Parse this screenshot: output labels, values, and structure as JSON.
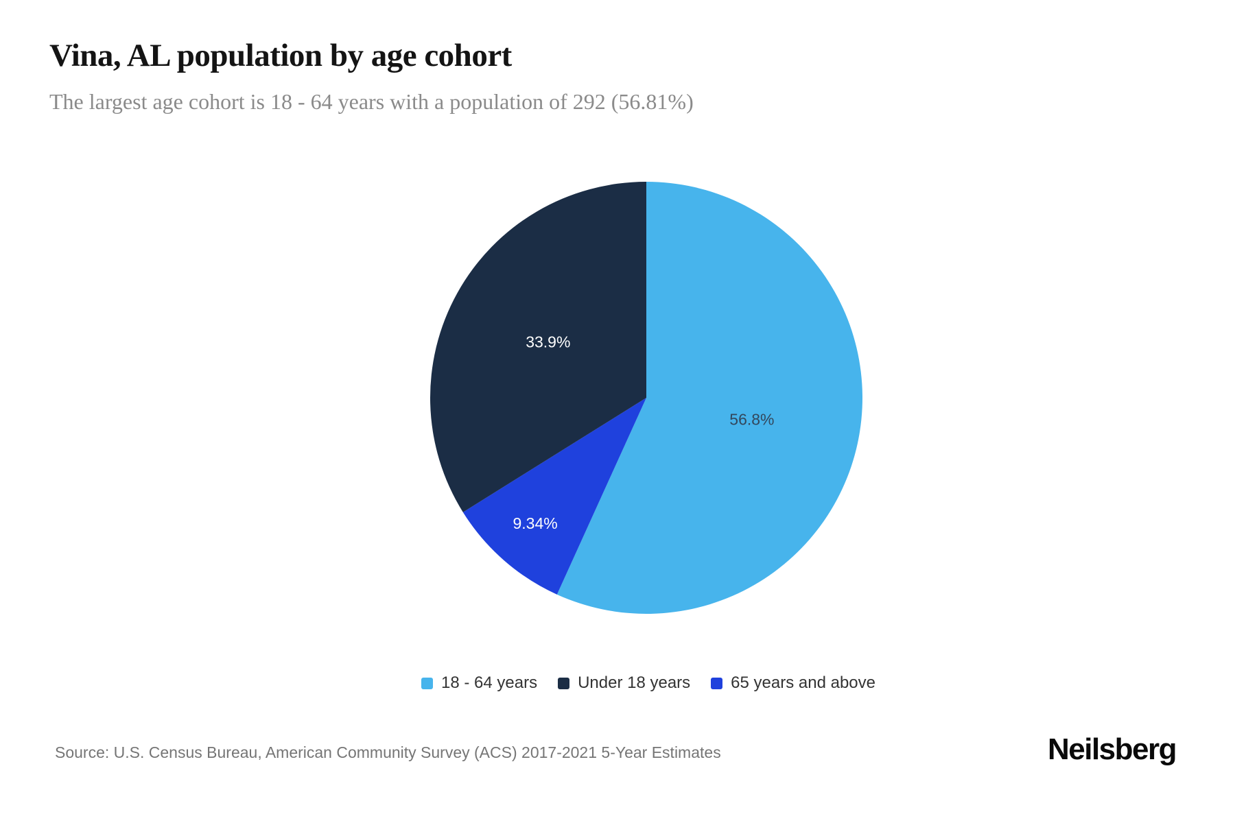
{
  "page": {
    "title": "Vina, AL population by age cohort",
    "subtitle": "The largest age cohort is 18 - 64 years with a population of 292 (56.81%)",
    "source": "Source: U.S. Census Bureau, American Community Survey (ACS) 2017-2021 5-Year Estimates",
    "brand": "Neilsberg"
  },
  "colors": {
    "background": "#ffffff",
    "title_text": "#141414",
    "subtitle_text": "#8a8a8a",
    "legend_text": "#333333",
    "source_text": "#757575"
  },
  "chart_data": {
    "type": "pie",
    "title": "Vina, AL population by age cohort",
    "subtitle": "The largest age cohort is 18 - 64 years with a population of 292 (56.81%)",
    "start_angle_deg": 0,
    "direction": "clockwise",
    "legend_position": "bottom-center",
    "slices": [
      {
        "label": "18 - 64 years",
        "value": 56.81,
        "display": "56.8%",
        "color": "#47b4ec",
        "label_color": "#33475c",
        "label_radius_frac": 0.5
      },
      {
        "label": "65 years and above",
        "value": 9.34,
        "display": "9.34%",
        "color": "#1f41dd",
        "label_color": "#fdfdfd",
        "label_radius_frac": 0.78
      },
      {
        "label": "Under 18 years",
        "value": 33.9,
        "display": "33.9%",
        "color": "#1b2d45",
        "label_color": "#fdfdfd",
        "label_radius_frac": 0.52
      }
    ],
    "legend_order": [
      0,
      2,
      1
    ]
  }
}
